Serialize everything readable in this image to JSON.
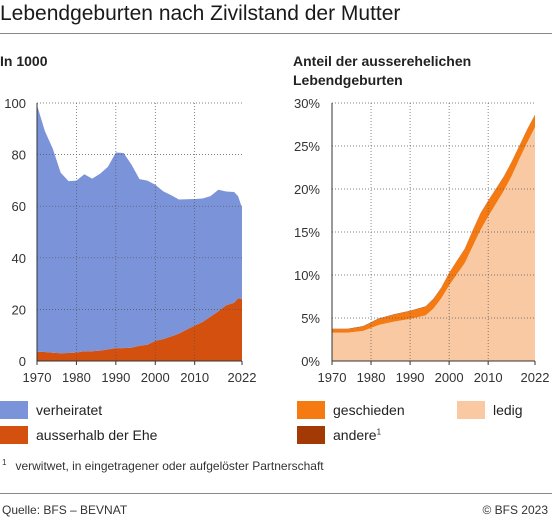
{
  "title": "Lebendgeburten nach Zivilstand der Mutter",
  "left_subtitle": "In 1000",
  "right_subtitle_line1": "Anteil der ausserehelichen",
  "right_subtitle_line2": "Lebendgeburten",
  "legend": {
    "married": "verheiratet",
    "unmarried": "ausserhalb der Ehe",
    "divorced": "geschieden",
    "single": "ledig",
    "other": "andere",
    "other_sup": "1"
  },
  "footnote": {
    "marker": "1",
    "text": "verwitwet, in eingetragener oder aufgelöster Partnerschaft"
  },
  "source": "Quelle: BFS – BEVNAT",
  "copyright": "© BFS 2023",
  "colors": {
    "married": "#7b93d9",
    "unmarried": "#d4500f",
    "single": "#f8c9a2",
    "divorced": "#f57a12",
    "other": "#a33a05"
  },
  "chart_data": [
    {
      "type": "area",
      "stacked": true,
      "xlim": [
        1970,
        2022
      ],
      "ylim": [
        0,
        100
      ],
      "xticks": [
        "1970",
        "1980",
        "1990",
        "2000",
        "2010",
        "2022"
      ],
      "yticks": [
        "0",
        "20",
        "40",
        "60",
        "80",
        "100"
      ],
      "grid": true,
      "x": [
        1970,
        1972,
        1974,
        1976,
        1978,
        1980,
        1982,
        1984,
        1986,
        1988,
        1990,
        1992,
        1994,
        1996,
        1998,
        2000,
        2002,
        2004,
        2006,
        2008,
        2010,
        2012,
        2014,
        2016,
        2018,
        2020,
        2021,
        2022
      ],
      "series": [
        {
          "name": "ausserhalb der Ehe",
          "values": [
            3.6,
            3.5,
            3.2,
            3.0,
            3.1,
            3.3,
            3.8,
            3.8,
            4.0,
            4.5,
            5.0,
            5.0,
            5.2,
            5.9,
            6.3,
            7.8,
            8.5,
            9.5,
            10.6,
            12.2,
            13.7,
            15.1,
            17.2,
            19.3,
            21.6,
            22.6,
            24.3,
            24.0
          ]
        },
        {
          "name": "verheiratet",
          "values": [
            95.6,
            85.6,
            79.1,
            70.0,
            66.6,
            66.6,
            68.6,
            66.9,
            68.6,
            70.8,
            75.8,
            75.6,
            70.8,
            64.6,
            63.6,
            60.5,
            57.3,
            54.8,
            52.0,
            50.5,
            49.1,
            47.9,
            46.7,
            47.1,
            44.1,
            42.9,
            39.6,
            35.4
          ]
        }
      ]
    },
    {
      "type": "area",
      "stacked": true,
      "unit": "%",
      "xlim": [
        1970,
        2022
      ],
      "ylim": [
        0,
        30
      ],
      "xticks": [
        "1970",
        "1980",
        "1990",
        "2000",
        "2010",
        "2022"
      ],
      "yticks": [
        "0%",
        "5%",
        "10%",
        "15%",
        "20%",
        "25%",
        "30%"
      ],
      "grid": true,
      "x": [
        1970,
        1974,
        1978,
        1982,
        1986,
        1990,
        1994,
        1996,
        1998,
        2000,
        2002,
        2004,
        2006,
        2008,
        2010,
        2012,
        2014,
        2016,
        2018,
        2020,
        2022
      ],
      "series": [
        {
          "name": "ledig",
          "values": [
            3.3,
            3.3,
            3.5,
            4.2,
            4.6,
            4.9,
            5.3,
            6.1,
            7.3,
            8.8,
            10.1,
            11.4,
            13.3,
            15.2,
            16.8,
            18.3,
            19.8,
            21.5,
            23.5,
            25.4,
            27.2
          ]
        },
        {
          "name": "geschieden",
          "values": [
            0.4,
            0.4,
            0.5,
            0.7,
            0.8,
            0.9,
            1.0,
            1.1,
            1.2,
            1.4,
            1.5,
            1.6,
            1.8,
            1.9,
            1.8,
            1.7,
            1.6,
            1.6,
            1.5,
            1.5,
            1.4
          ]
        },
        {
          "name": "andere",
          "values": [
            0.05,
            0.05,
            0.05,
            0.05,
            0.05,
            0.05,
            0.05,
            0.05,
            0.05,
            0.05,
            0.05,
            0.05,
            0.05,
            0.05,
            0.05,
            0.05,
            0.05,
            0.05,
            0.05,
            0.05,
            0.05
          ]
        }
      ]
    }
  ]
}
